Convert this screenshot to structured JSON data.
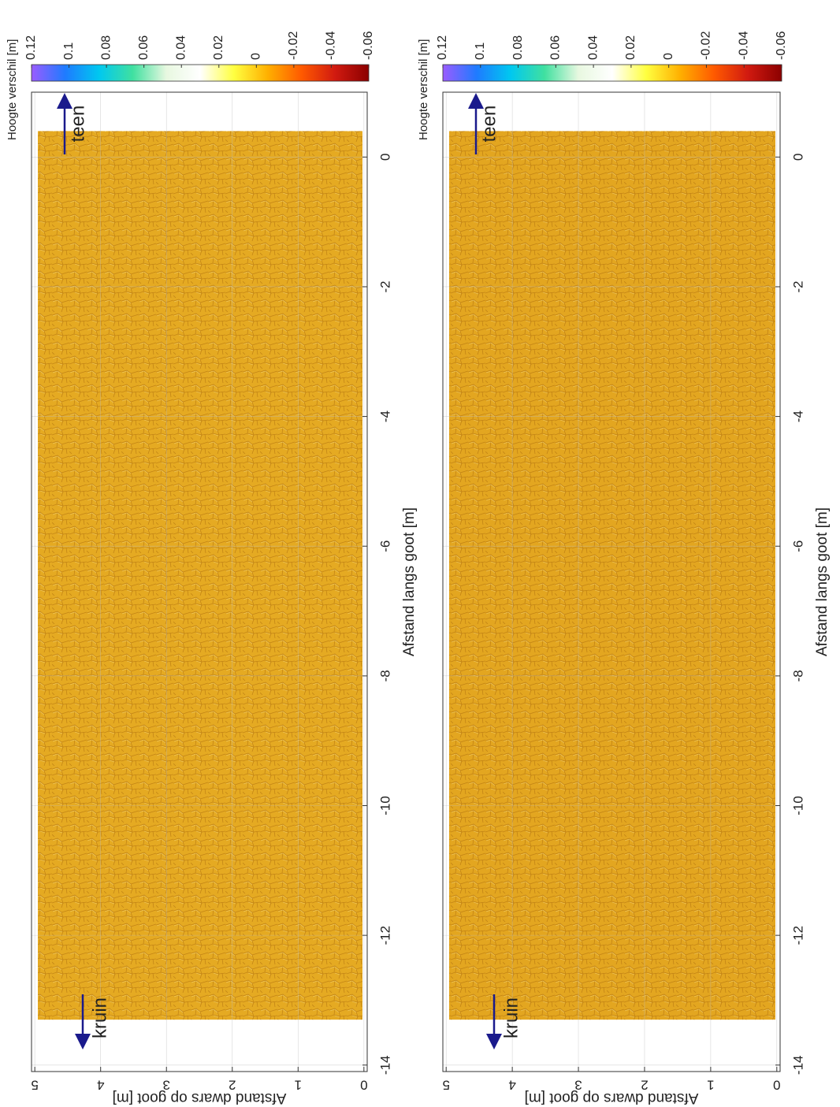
{
  "chart_data": [
    {
      "type": "heatmap",
      "xlabel": "Afstand langs goot [m]",
      "ylabel": "Afstand dwars op goot [m]",
      "xlim": [
        -14.1,
        1
      ],
      "xticks": [
        0,
        -2,
        -4,
        -6,
        -8,
        -10,
        -12,
        -14
      ],
      "ylim": [
        -0.05,
        5.05
      ],
      "yticks": [
        0,
        1,
        2,
        3,
        4,
        5
      ],
      "grid": true,
      "surface_extent": [
        -13.3,
        0.4
      ],
      "surface_color": "#e5aa22",
      "colorbar": {
        "label": "Hoogte verschil [m]",
        "lim": [
          -0.06,
          0.12
        ],
        "ticks": [
          0.12,
          0.1,
          0.08,
          0.06,
          0.04,
          0.02,
          0,
          -0.02,
          -0.04,
          -0.06
        ],
        "colors": [
          "#8b0000",
          "#d11a10",
          "#ff5a00",
          "#ffb000",
          "#ffff40",
          "#ffffff",
          "#e8f8e0",
          "#40e0a0",
          "#00c8f0",
          "#1e7bff",
          "#9a5cff"
        ]
      },
      "annotations": [
        "teen",
        "kruin"
      ]
    },
    {
      "type": "heatmap",
      "xlabel": "Afstand langs goot [m]",
      "ylabel": "Afstand dwars op goot [m]",
      "xlim": [
        -14.1,
        1
      ],
      "xticks": [
        0,
        -2,
        -4,
        -6,
        -8,
        -10,
        -12,
        -14
      ],
      "ylim": [
        -0.05,
        5.05
      ],
      "yticks": [
        0,
        1,
        2,
        3,
        4,
        5
      ],
      "grid": true,
      "surface_extent": [
        -13.3,
        0.4
      ],
      "surface_color": "#e3a620",
      "colorbar": {
        "label": "Hoogte verschil [m]",
        "lim": [
          -0.06,
          0.12
        ],
        "ticks": [
          0.12,
          0.1,
          0.08,
          0.06,
          0.04,
          0.02,
          0,
          -0.02,
          -0.04,
          -0.06
        ],
        "colors": [
          "#8b0000",
          "#d11a10",
          "#ff5a00",
          "#ffb000",
          "#ffff40",
          "#ffffff",
          "#e8f8e0",
          "#40e0a0",
          "#00c8f0",
          "#1e7bff",
          "#9a5cff"
        ]
      },
      "annotations": [
        "teen",
        "kruin"
      ]
    }
  ]
}
